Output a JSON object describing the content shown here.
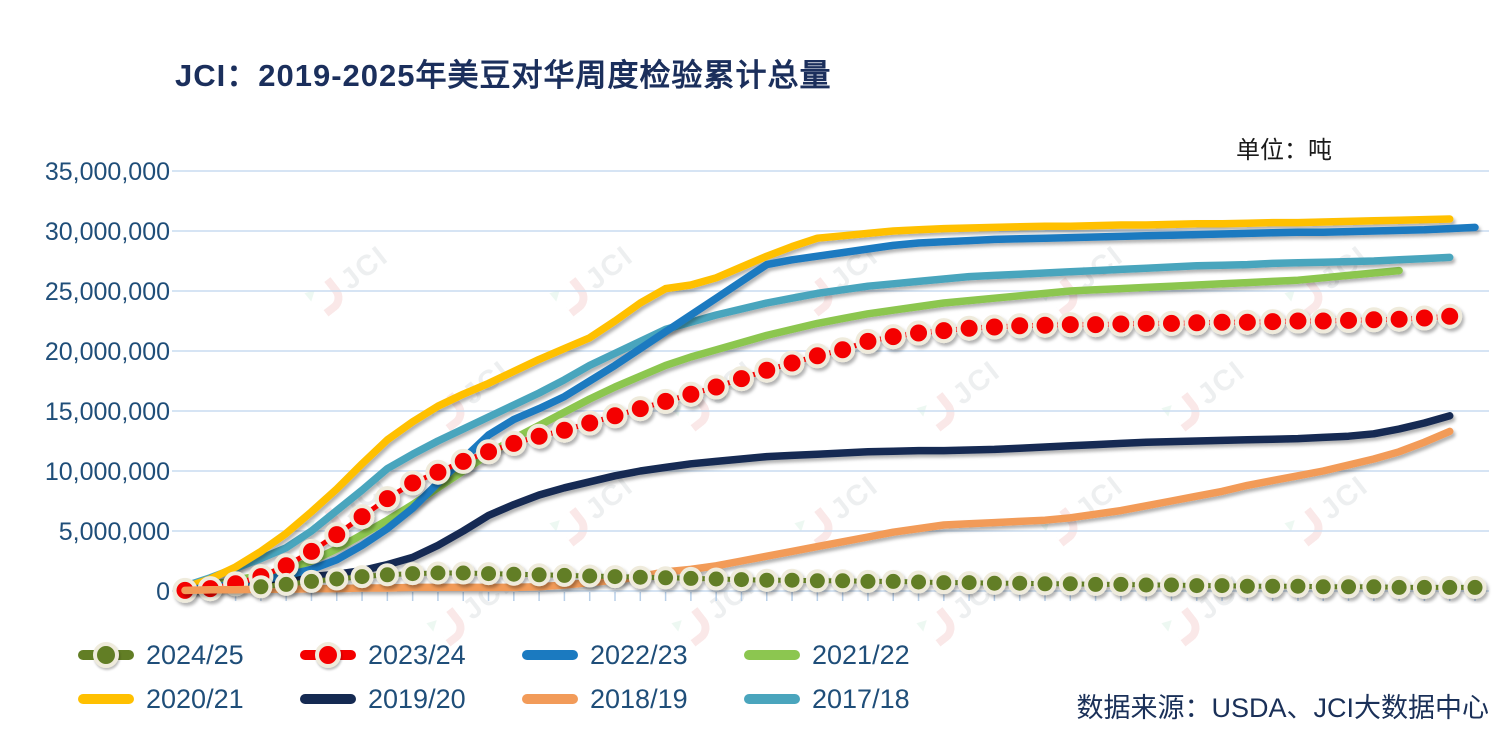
{
  "title": "JCI：2019-2025年美豆对华周度检验累计总量",
  "unit_label": "单位：吨",
  "source": "数据来源：USDA、JCI大数据中心",
  "watermark_text": "JCI",
  "colors": {
    "title_text": "#1b2f5c",
    "axis_text": "#1f4e79",
    "legend_text": "#1f4e79",
    "gridline": "#c9dcf0",
    "tick": "#b8cfe8",
    "marker_ring": "#efebdc"
  },
  "chart_data": {
    "type": "line",
    "title": "JCI：2019-2025年美豆对华周度检验累计总量",
    "ylabel": "吨",
    "unit": "吨",
    "values_unit": "million_tons",
    "x_unit": "marketing-year week (no x tick labels shown, 52 weekly ticks)",
    "ylim": [
      0,
      35000000
    ],
    "ytick_interval": 5000000,
    "ytick_labels": [
      "0",
      "5,000,000",
      "10,000,000",
      "15,000,000",
      "20,000,000",
      "25,000,000",
      "30,000,000",
      "35,000,000"
    ],
    "grid": "horizontal",
    "legend_position": "bottom-left, two rows",
    "series": [
      {
        "name": "2024/25",
        "color": "#627e25",
        "style": "marker-line",
        "start_week": 4,
        "values": [
          0.35,
          0.55,
          0.8,
          1.0,
          1.2,
          1.35,
          1.45,
          1.5,
          1.5,
          1.45,
          1.4,
          1.35,
          1.3,
          1.25,
          1.2,
          1.15,
          1.1,
          1.05,
          1.0,
          0.95,
          0.9,
          0.9,
          0.85,
          0.85,
          0.8,
          0.8,
          0.75,
          0.7,
          0.7,
          0.65,
          0.65,
          0.6,
          0.6,
          0.55,
          0.55,
          0.5,
          0.5,
          0.45,
          0.45,
          0.4,
          0.4,
          0.4,
          0.35,
          0.35,
          0.35,
          0.3,
          0.3,
          0.3,
          0.3
        ]
      },
      {
        "name": "2023/24",
        "color": "#f40000",
        "style": "marker-line",
        "start_week": 1,
        "values": [
          0.05,
          0.2,
          0.6,
          1.2,
          2.1,
          3.3,
          4.7,
          6.2,
          7.7,
          9.0,
          9.9,
          10.8,
          11.6,
          12.3,
          12.9,
          13.4,
          14.0,
          14.6,
          15.2,
          15.8,
          16.4,
          17.0,
          17.7,
          18.4,
          19.0,
          19.6,
          20.1,
          20.8,
          21.2,
          21.5,
          21.7,
          21.9,
          22.0,
          22.1,
          22.15,
          22.2,
          22.2,
          22.25,
          22.3,
          22.3,
          22.35,
          22.4,
          22.4,
          22.45,
          22.5,
          22.5,
          22.55,
          22.6,
          22.65,
          22.75,
          22.9
        ]
      },
      {
        "name": "2022/23",
        "color": "#1b7ac0",
        "style": "line",
        "start_week": 1,
        "values": [
          0.1,
          0.3,
          0.6,
          0.9,
          1.3,
          1.8,
          2.6,
          3.8,
          5.2,
          6.9,
          9.0,
          11.0,
          13.0,
          14.3,
          15.2,
          16.2,
          17.5,
          18.8,
          20.2,
          21.6,
          23.0,
          24.4,
          25.8,
          27.2,
          27.6,
          27.9,
          28.2,
          28.5,
          28.8,
          29.0,
          29.1,
          29.2,
          29.3,
          29.35,
          29.4,
          29.45,
          29.5,
          29.55,
          29.6,
          29.65,
          29.7,
          29.75,
          29.8,
          29.85,
          29.9,
          29.9,
          29.95,
          30.0,
          30.05,
          30.1,
          30.2,
          30.3
        ]
      },
      {
        "name": "2021/22",
        "color": "#8cc650",
        "style": "line",
        "start_week": 1,
        "values": [
          0.2,
          0.5,
          0.9,
          1.3,
          1.8,
          2.5,
          3.5,
          4.7,
          5.9,
          7.2,
          8.6,
          10.0,
          11.4,
          12.7,
          13.8,
          14.9,
          16.0,
          17.0,
          17.9,
          18.8,
          19.5,
          20.1,
          20.7,
          21.3,
          21.8,
          22.3,
          22.7,
          23.1,
          23.4,
          23.7,
          24.0,
          24.2,
          24.4,
          24.6,
          24.8,
          25.0,
          25.1,
          25.2,
          25.3,
          25.4,
          25.5,
          25.6,
          25.7,
          25.8,
          25.9,
          26.1,
          26.3,
          26.5,
          26.7
        ]
      },
      {
        "name": "2020/21",
        "color": "#ffc000",
        "style": "line",
        "start_week": 1,
        "values": [
          0.3,
          1.0,
          2.0,
          3.3,
          4.8,
          6.6,
          8.5,
          10.6,
          12.6,
          14.1,
          15.4,
          16.4,
          17.3,
          18.3,
          19.3,
          20.2,
          21.1,
          22.5,
          24.0,
          25.2,
          25.5,
          26.1,
          27.0,
          27.9,
          28.7,
          29.4,
          29.6,
          29.8,
          30.0,
          30.1,
          30.2,
          30.25,
          30.3,
          30.35,
          30.4,
          30.4,
          30.45,
          30.5,
          30.5,
          30.55,
          30.6,
          30.6,
          30.65,
          30.7,
          30.7,
          30.75,
          30.8,
          30.85,
          30.9,
          30.95,
          31.0
        ]
      },
      {
        "name": "2019/20",
        "color": "#152a52",
        "style": "line",
        "start_week": 1,
        "values": [
          0.1,
          0.3,
          0.5,
          0.8,
          1.0,
          1.2,
          1.4,
          1.7,
          2.2,
          2.8,
          3.8,
          5.0,
          6.3,
          7.2,
          8.0,
          8.6,
          9.1,
          9.6,
          10.0,
          10.3,
          10.6,
          10.8,
          11.0,
          11.2,
          11.3,
          11.4,
          11.5,
          11.6,
          11.65,
          11.7,
          11.7,
          11.75,
          11.8,
          11.9,
          12.0,
          12.1,
          12.2,
          12.3,
          12.4,
          12.45,
          12.5,
          12.55,
          12.6,
          12.65,
          12.7,
          12.8,
          12.9,
          13.1,
          13.5,
          14.0,
          14.6
        ]
      },
      {
        "name": "2018/19",
        "color": "#f29b59",
        "style": "line",
        "start_week": 1,
        "values": [
          0.05,
          0.1,
          0.1,
          0.15,
          0.15,
          0.2,
          0.2,
          0.25,
          0.25,
          0.3,
          0.3,
          0.3,
          0.3,
          0.3,
          0.35,
          0.5,
          0.7,
          0.9,
          1.2,
          1.6,
          1.8,
          2.1,
          2.5,
          2.9,
          3.3,
          3.7,
          4.1,
          4.5,
          4.9,
          5.2,
          5.5,
          5.6,
          5.7,
          5.8,
          5.9,
          6.1,
          6.4,
          6.7,
          7.1,
          7.5,
          7.9,
          8.3,
          8.8,
          9.2,
          9.6,
          10.0,
          10.5,
          11.0,
          11.6,
          12.4,
          13.3
        ]
      },
      {
        "name": "2017/18",
        "color": "#4aa5bd",
        "style": "line",
        "start_week": 1,
        "values": [
          0.4,
          1.1,
          1.9,
          2.7,
          3.6,
          5.0,
          6.7,
          8.4,
          10.2,
          11.4,
          12.5,
          13.5,
          14.5,
          15.5,
          16.5,
          17.6,
          18.8,
          19.8,
          20.8,
          21.8,
          22.4,
          23.0,
          23.5,
          24.0,
          24.4,
          24.8,
          25.1,
          25.4,
          25.6,
          25.8,
          26.0,
          26.2,
          26.3,
          26.4,
          26.5,
          26.6,
          26.7,
          26.8,
          26.9,
          27.0,
          27.1,
          27.15,
          27.2,
          27.3,
          27.35,
          27.4,
          27.45,
          27.5,
          27.6,
          27.7,
          27.8
        ]
      }
    ]
  }
}
